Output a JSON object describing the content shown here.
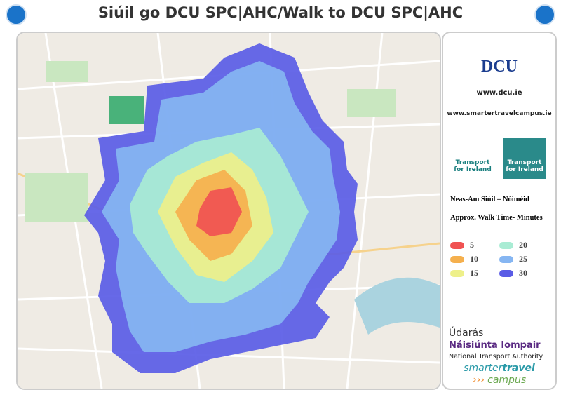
{
  "header": {
    "title": "Siúil go DCU SPC|AHC/Walk to DCU SPC|AHC"
  },
  "sidebar": {
    "logo": "DCU",
    "links": [
      "www.dcu.ie",
      "www.smartertravelcampus.ie"
    ],
    "tfi_logos": [
      {
        "line1": "Transport",
        "line2": "for Ireland"
      },
      {
        "line1": "Transport",
        "line2": "for Ireland"
      }
    ],
    "legend_title_ga": "Neas-Am Siúil – Nóiméid",
    "legend_title_en": "Approx. Walk Time- Minutes",
    "legend": [
      {
        "label": 5,
        "color": "#f05252"
      },
      {
        "label": 10,
        "color": "#f5b04e"
      },
      {
        "label": 15,
        "color": "#eef08a"
      },
      {
        "label": 20,
        "color": "#a9ecd4"
      },
      {
        "label": 25,
        "color": "#86b6f2"
      },
      {
        "label": 30,
        "color": "#5a5ce6"
      }
    ],
    "nta": {
      "line1": "Údarás",
      "line2": "Náisiúnta Iompair",
      "line3": "National Transport Authority",
      "brand1": "smarter",
      "brand2": "travel",
      "brand3": "campus"
    }
  }
}
